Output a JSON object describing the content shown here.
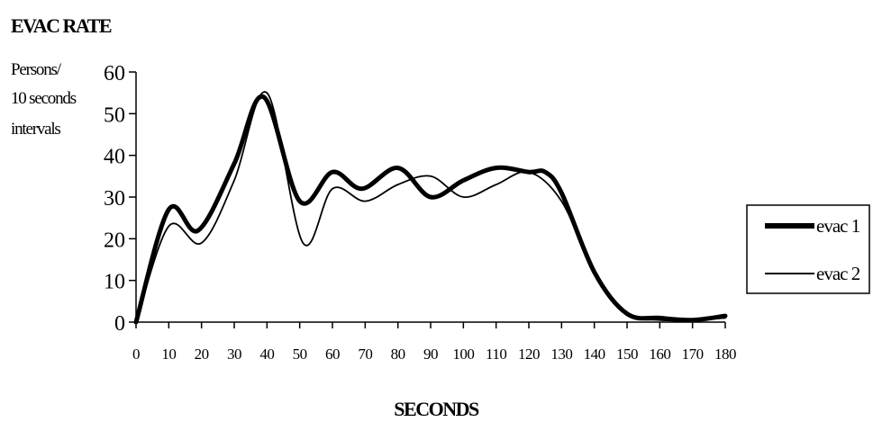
{
  "chart_data": {
    "type": "line",
    "title": "EVAC RATE",
    "ylabel_lines": [
      "Persons/",
      "10 seconds",
      "intervals"
    ],
    "xlabel": "SECONDS",
    "x": [
      0,
      10,
      20,
      30,
      40,
      50,
      60,
      70,
      80,
      90,
      100,
      110,
      120,
      130,
      140,
      150,
      160,
      170,
      180
    ],
    "xlim": [
      0,
      180
    ],
    "ylim": [
      0,
      60
    ],
    "yticks": [
      0,
      10,
      20,
      30,
      40,
      50,
      60
    ],
    "xticks": [
      0,
      10,
      20,
      30,
      40,
      50,
      60,
      70,
      80,
      90,
      100,
      110,
      120,
      130,
      140,
      150,
      160,
      170,
      180
    ],
    "grid": false,
    "legend_position": "right",
    "series": [
      {
        "name": "evac 1",
        "stroke": "thick",
        "x": [
          0,
          10,
          19,
          30,
          39,
          50,
          60,
          69,
          80,
          90,
          100,
          110,
          120,
          125,
          130,
          140,
          150,
          160,
          170,
          180
        ],
        "values": [
          0,
          27,
          22,
          38,
          54,
          29,
          36,
          32,
          37,
          30,
          34,
          37,
          36,
          36,
          31,
          12,
          2,
          1,
          0.5,
          1.5
        ]
      },
      {
        "name": "evac 2",
        "stroke": "thin",
        "x": [
          0,
          10,
          20,
          30,
          40,
          51,
          60,
          70,
          80,
          90,
          100,
          110,
          120,
          130,
          140,
          150,
          160,
          170,
          180
        ],
        "values": [
          0,
          23,
          19,
          34,
          55,
          19,
          32,
          29,
          33,
          35,
          30,
          33,
          36,
          29,
          12,
          2,
          0.5,
          0.5,
          1
        ]
      }
    ],
    "colors": {
      "line": "#000000",
      "background": "#ffffff"
    }
  }
}
